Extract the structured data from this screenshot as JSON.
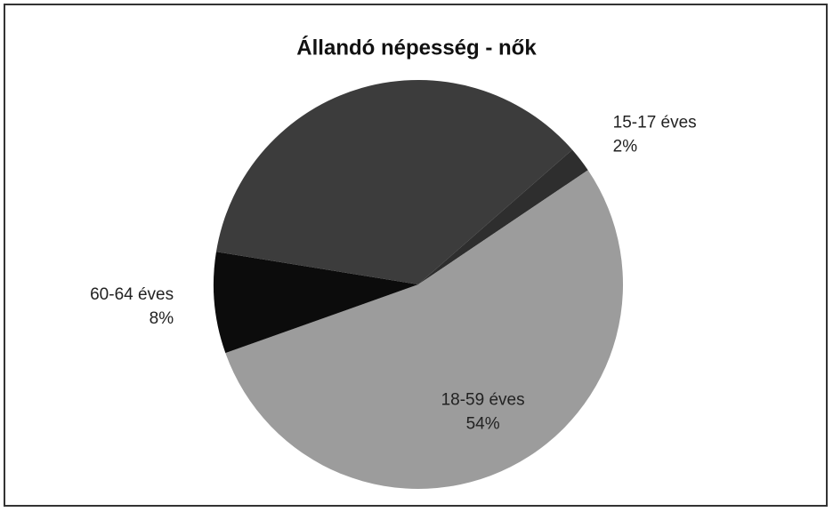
{
  "chart_data": {
    "type": "pie",
    "title": "Állandó népesség - nők",
    "categories": [
      "15-17 éves",
      "18-59 éves",
      "60-64 éves",
      null
    ],
    "values": [
      2,
      54,
      8,
      36
    ],
    "value_labels": [
      "2%",
      "54%",
      "8%",
      null
    ],
    "colors": [
      "#2e2e2e",
      "#9c9c9c",
      "#0c0c0c",
      "#3c3c3c"
    ]
  }
}
